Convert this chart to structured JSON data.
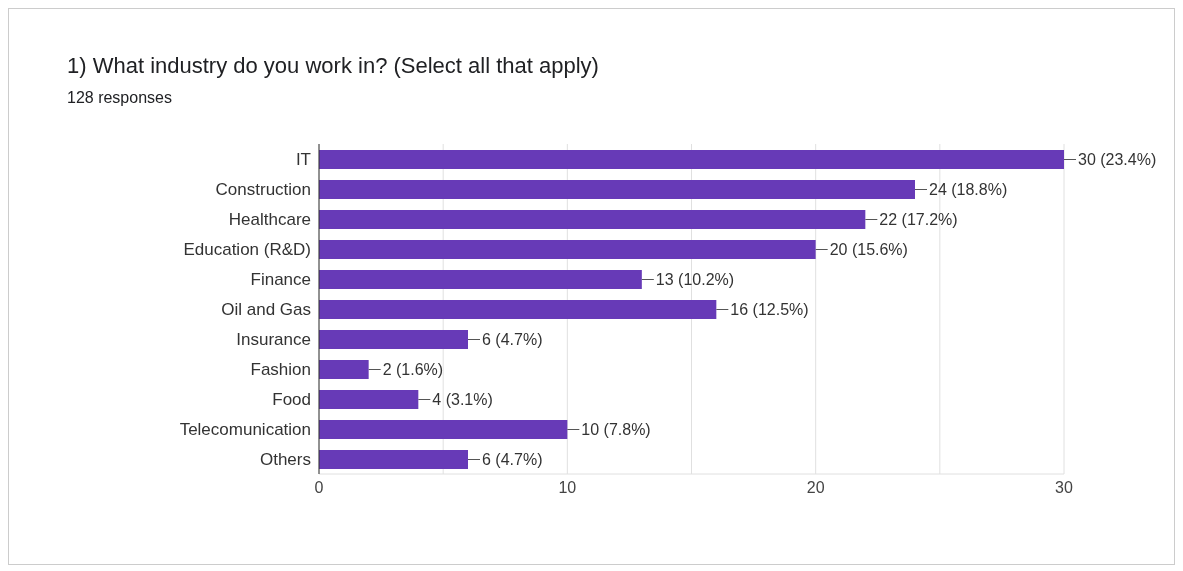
{
  "chart_data": {
    "type": "bar",
    "orientation": "horizontal",
    "title": "1) What industry do you work in? (Select all that apply)",
    "subtitle": "128 responses",
    "categories": [
      "IT",
      "Construction",
      "Healthcare",
      "Education (R&D)",
      "Finance",
      "Oil and Gas",
      "Insurance",
      "Fashion",
      "Food",
      "Telecomunication",
      "Others"
    ],
    "values": [
      30,
      24,
      22,
      20,
      13,
      16,
      6,
      2,
      4,
      10,
      6
    ],
    "value_labels": [
      "30 (23.4%)",
      "24 (18.8%)",
      "22 (17.2%)",
      "20 (15.6%)",
      "13 (10.2%)",
      "16 (12.5%)",
      "6 (4.7%)",
      "2 (1.6%)",
      "4 (3.1%)",
      "10 (7.8%)",
      "6 (4.7%)"
    ],
    "color": "#673ab7",
    "xlim": [
      0,
      30
    ],
    "xticks": [
      0,
      {
        "value": 5,
        "label": null
      },
      10,
      {
        "value": 15,
        "label": null
      },
      20,
      {
        "value": 25,
        "label": null
      },
      30
    ],
    "grid": "x",
    "legend": false
  }
}
